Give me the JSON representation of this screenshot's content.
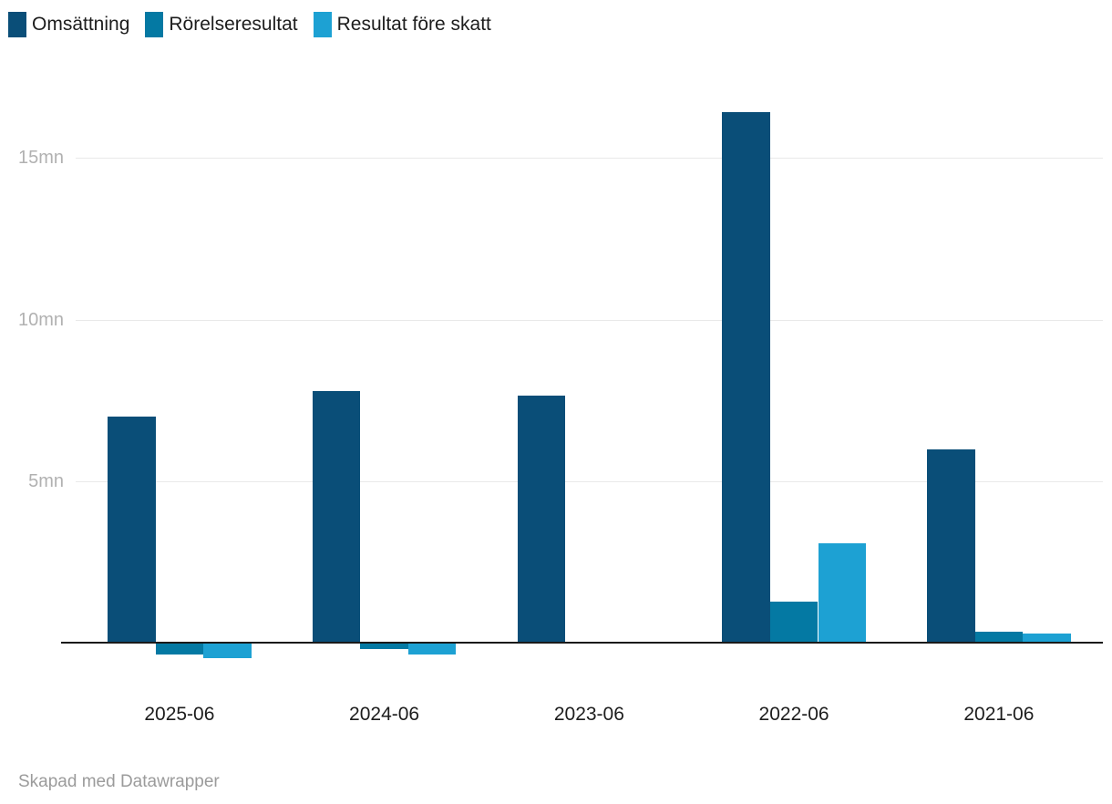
{
  "chart_data": {
    "type": "bar",
    "title": "",
    "categories": [
      "2025-06",
      "2024-06",
      "2023-06",
      "2022-06",
      "2021-06"
    ],
    "series": [
      {
        "name": "Omsättning",
        "color": "#0a4e78",
        "values": [
          7.0,
          7.8,
          7.65,
          16.4,
          6.0
        ]
      },
      {
        "name": "Rörelseresultat",
        "color": "#0479a3",
        "values": [
          -0.33,
          -0.18,
          0.05,
          1.3,
          0.37
        ]
      },
      {
        "name": "Resultat före skatt",
        "color": "#1da1d3",
        "values": [
          -0.44,
          -0.35,
          0.0,
          3.1,
          0.31
        ]
      }
    ],
    "unit": "mn",
    "y_ticks": [
      {
        "value": 5,
        "label": "5mn"
      },
      {
        "value": 10,
        "label": "10mn"
      },
      {
        "value": 15,
        "label": "15mn"
      }
    ],
    "ylim": [
      -0.6,
      17.3
    ],
    "grid": "horizontal",
    "legend_position": "top-left",
    "bar_layout": "grouped columns, zero baseline drawn black"
  },
  "theme": {
    "background": "#ffffff",
    "gridline_color": "#e9e9e9",
    "baseline_color": "#1a1a1a",
    "ytick_color": "#b1b1b1",
    "category_label_color": "#1d1d1d",
    "credit_color": "#9b9b9b"
  },
  "footer": {
    "credit": "Skapad med Datawrapper"
  }
}
